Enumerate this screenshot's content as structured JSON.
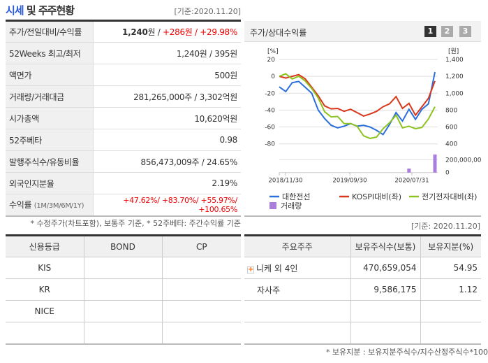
{
  "left": {
    "title_hl": "시세",
    "title_rest": " 및 주주현황",
    "asof": "[기준:2020.11.20]",
    "rows": [
      {
        "label": "주가/전일대비/수익률",
        "price": "1,240",
        "unit": "원 / ",
        "change": "+286원 / +29.98%"
      },
      {
        "label": "52Weeks 최고/최저",
        "value": "1,240원 / 395원"
      },
      {
        "label": "액면가",
        "value": "500원"
      },
      {
        "label": "거래량/거래대금",
        "value": "281,265,000주 / 3,302억원"
      },
      {
        "label": "시가총액",
        "value": "10,620억원"
      },
      {
        "label": "52주베타",
        "value": "0.98"
      },
      {
        "label": "발행주식수/유동비율",
        "value": "856,473,009주 / 24.65%"
      },
      {
        "label": "외국인지분율",
        "value": "2.19%"
      },
      {
        "label": "수익률",
        "sublabel": "(1M/3M/6M/1Y)",
        "value": "+47.62%/ +83.70%/ +55.97%/ +100.65%"
      }
    ],
    "note": "* 수정주가(차트포함), 보통주 기준, * 52주베타: 주간수익률 기준"
  },
  "chart": {
    "title": "주가/상대수익률",
    "pages": [
      "1",
      "2",
      "3"
    ],
    "active_page": "1"
  },
  "chart_data": {
    "type": "line",
    "left_unit": "[%]",
    "right_unit": "[원]",
    "y_left_ticks": [
      "20",
      "0",
      "-20",
      "-40",
      "-60",
      "-80"
    ],
    "ylim_left": [
      -80,
      20
    ],
    "y_right_ticks": [
      "1,400",
      "1,200",
      "1,000",
      "800",
      "600",
      "400"
    ],
    "ylim_right": [
      400,
      1400
    ],
    "volume_ticks": [
      "200,000,000",
      "0"
    ],
    "x_ticks": [
      "2018/11/30",
      "2019/09/30",
      "2020/07/31"
    ],
    "series": [
      {
        "name": "대한전선",
        "color": "#2a6fdb",
        "values": [
          -12.5,
          -18,
          -7.5,
          -6,
          -13,
          -20,
          -40,
          -50,
          -58,
          -61,
          -59,
          -56,
          -59,
          -58,
          -60,
          -64,
          -69,
          -57,
          -43,
          -53,
          -39,
          -51,
          -39,
          -32.5,
          5
        ]
      },
      {
        "name": "KOSPI대비(좌)",
        "color": "#d9361b",
        "values": [
          0,
          -2,
          0,
          2,
          -3,
          -13,
          -23,
          -35,
          -38.5,
          -38,
          -41.5,
          -39,
          -43,
          -47,
          -44.5,
          -41.5,
          -36,
          -32.5,
          -24,
          -38,
          -32,
          -46,
          -36,
          -26,
          -5.5
        ]
      },
      {
        "name": "전기전자대비(좌)",
        "color": "#8cc31f",
        "values": [
          0,
          3,
          -3,
          0,
          -5.5,
          -14.5,
          -25.5,
          -42,
          -48,
          -47.5,
          -56,
          -56,
          -59,
          -70.5,
          -73.5,
          -72,
          -62,
          -55,
          -46,
          -61,
          -59,
          -62,
          -60.5,
          -50.5,
          -36
        ]
      }
    ],
    "volume": {
      "name": "거래량",
      "color": "#a97fdb",
      "values": [
        0,
        0,
        0,
        0,
        0,
        0,
        0,
        0,
        0,
        0,
        0,
        0,
        0,
        0,
        0,
        0,
        0,
        0,
        0,
        0,
        62000000,
        0,
        0,
        0,
        281265000
      ]
    }
  },
  "credit": {
    "headers": [
      "신용등급",
      "BOND",
      "CP"
    ],
    "rows": [
      [
        "KIS",
        "",
        ""
      ],
      [
        "KR",
        "",
        ""
      ],
      [
        "NICE",
        "",
        ""
      ],
      [
        "",
        "",
        ""
      ]
    ]
  },
  "holders": {
    "asof": "[기준: 2020.11.20]",
    "headers": [
      "주요주주",
      "보유주식수(보통)",
      "보유지분(%)"
    ],
    "rows": [
      {
        "name": "니케 외 4인",
        "shares": "470,659,054",
        "pct": "54.95",
        "expand": true
      },
      {
        "name": "자사주",
        "shares": "9,586,175",
        "pct": "1.12"
      }
    ],
    "note": "* 보유지분 : 보유지분주식수/지수산정주식수*100"
  }
}
